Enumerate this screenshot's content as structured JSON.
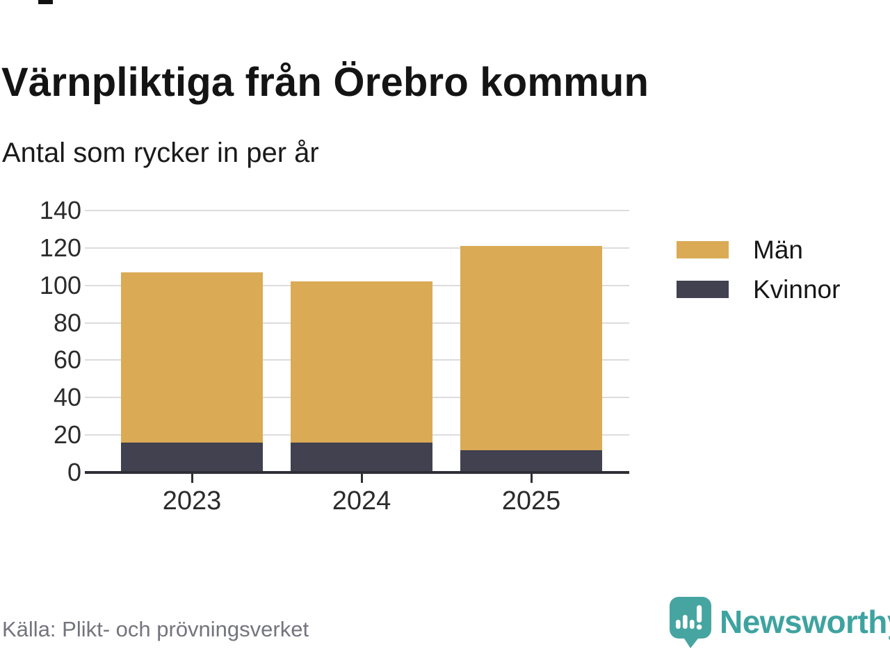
{
  "title": "Värnpliktiga från Örebro kommun",
  "subtitle": "Antal som rycker in per år",
  "source": "Källa: Plikt- och prövningsverket",
  "brand": {
    "name": "Newsworthy"
  },
  "colors": {
    "men": "#daaa55",
    "women": "#414150",
    "grid": "#dcdcdc",
    "axis": "#2e2e36",
    "teal": "#3ea3a0",
    "label": "#2b2b2b",
    "source_text": "#74747e"
  },
  "chart_data": {
    "type": "bar",
    "stacked": true,
    "title": "Värnpliktiga från Örebro kommun",
    "subtitle": "Antal som rycker in per år",
    "categories": [
      "2023",
      "2024",
      "2025"
    ],
    "series": [
      {
        "name": "Män",
        "color": "#daaa55",
        "values": [
          91,
          86,
          109
        ]
      },
      {
        "name": "Kvinnor",
        "color": "#414150",
        "values": [
          16,
          16,
          12
        ]
      }
    ],
    "stack_bottom_to_top": [
      "Kvinnor",
      "Män"
    ],
    "totals": [
      107,
      102,
      121
    ],
    "xlabel": "",
    "ylabel": "",
    "ylim": [
      0,
      140
    ],
    "yticks": [
      0,
      20,
      40,
      60,
      80,
      100,
      120,
      140
    ],
    "grid": true,
    "legend_position": "right"
  }
}
